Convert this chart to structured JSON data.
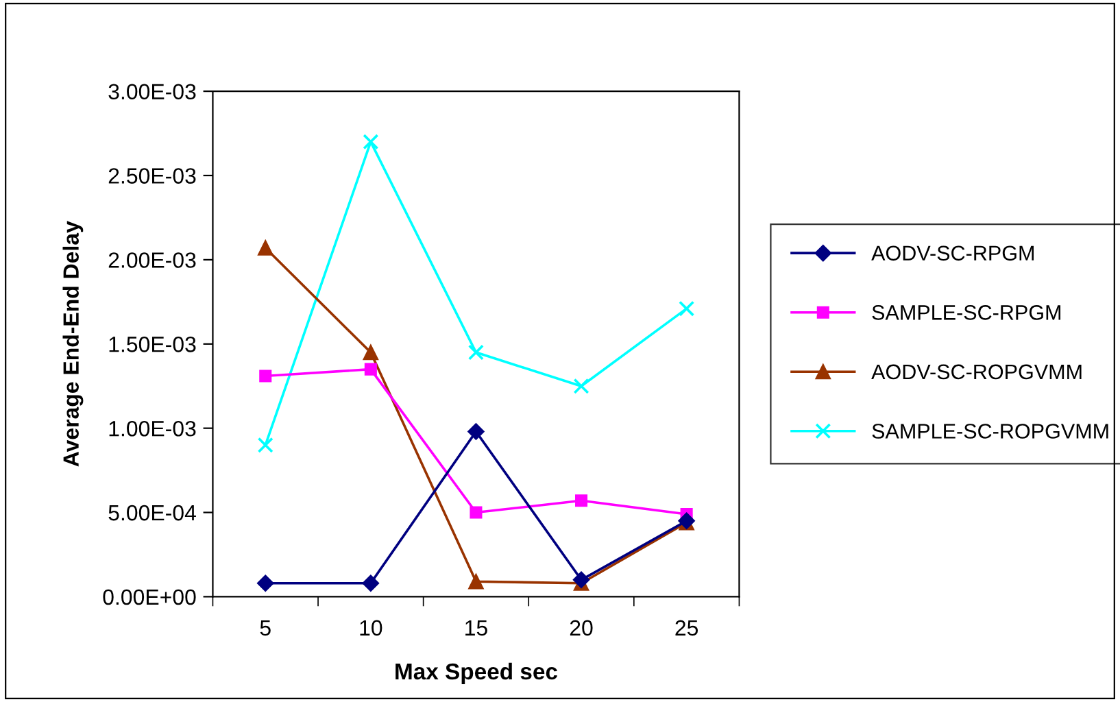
{
  "chart_data": {
    "type": "line",
    "xlabel": "Max Speed sec",
    "ylabel": "Average End-End Delay",
    "categories": [
      "5",
      "10",
      "15",
      "20",
      "25"
    ],
    "series": [
      {
        "name": "AODV-SC-RPGM",
        "color": "#000080",
        "marker": "diamond",
        "values": [
          8e-05,
          8e-05,
          0.00098,
          0.0001,
          0.00045
        ]
      },
      {
        "name": "SAMPLE-SC-RPGM",
        "color": "#ff00ff",
        "marker": "square",
        "values": [
          0.00131,
          0.00135,
          0.0005,
          0.00057,
          0.00049
        ]
      },
      {
        "name": "AODV-SC-ROPGVMM",
        "color": "#993300",
        "marker": "triangle",
        "values": [
          0.00207,
          0.00145,
          9e-05,
          8e-05,
          0.00044
        ]
      },
      {
        "name": "SAMPLE-SC-ROPGVMM",
        "color": "#00ffff",
        "marker": "cross",
        "values": [
          0.0009,
          0.0027,
          0.00145,
          0.00125,
          0.00171
        ]
      }
    ],
    "ylim": [
      0,
      0.003
    ],
    "yticks": [
      {
        "value": 0,
        "label": "0.00E+00"
      },
      {
        "value": 0.0005,
        "label": "5.00E-04"
      },
      {
        "value": 0.001,
        "label": "1.00E-03"
      },
      {
        "value": 0.0015,
        "label": "1.50E-03"
      },
      {
        "value": 0.002,
        "label": "2.00E-03"
      },
      {
        "value": 0.0025,
        "label": "2.50E-03"
      },
      {
        "value": 0.003,
        "label": "3.00E-03"
      }
    ],
    "grid": false,
    "legend": "right",
    "line_style": "solid"
  }
}
